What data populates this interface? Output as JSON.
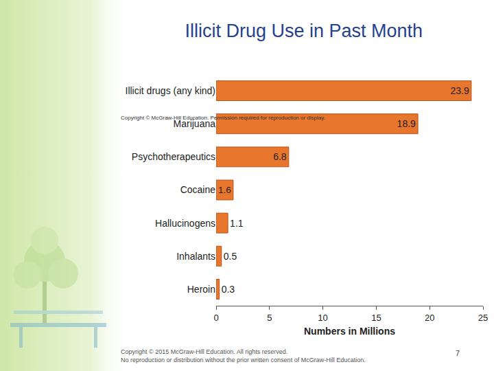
{
  "chart_data": {
    "type": "bar",
    "orientation": "horizontal",
    "title": "Illicit Drug Use in Past Month",
    "annotations": [
      "Copyright © McGraw-Hill Education. Permission required for reproduction or display."
    ],
    "categories": [
      "Illicit drugs (any kind)",
      "Marijuana",
      "Psychotherapeutics",
      "Cocaine",
      "Hallucinogens",
      "Inhalants",
      "Heroin"
    ],
    "values": [
      23.9,
      18.9,
      6.8,
      1.6,
      1.1,
      0.5,
      0.3
    ],
    "color": "#e8762c",
    "x_label": "Numbers in Millions",
    "xlim": [
      0,
      25
    ],
    "xticks": [
      0,
      5,
      10,
      15,
      20,
      25
    ],
    "grid": false,
    "data_labels": true
  },
  "footer": {
    "lines": [
      "Copyright © 2015 McGraw-Hill Education. All rights reserved.",
      "No reproduction or distribution without the prior written consent of McGraw-Hill Education."
    ],
    "page_number": 7
  }
}
